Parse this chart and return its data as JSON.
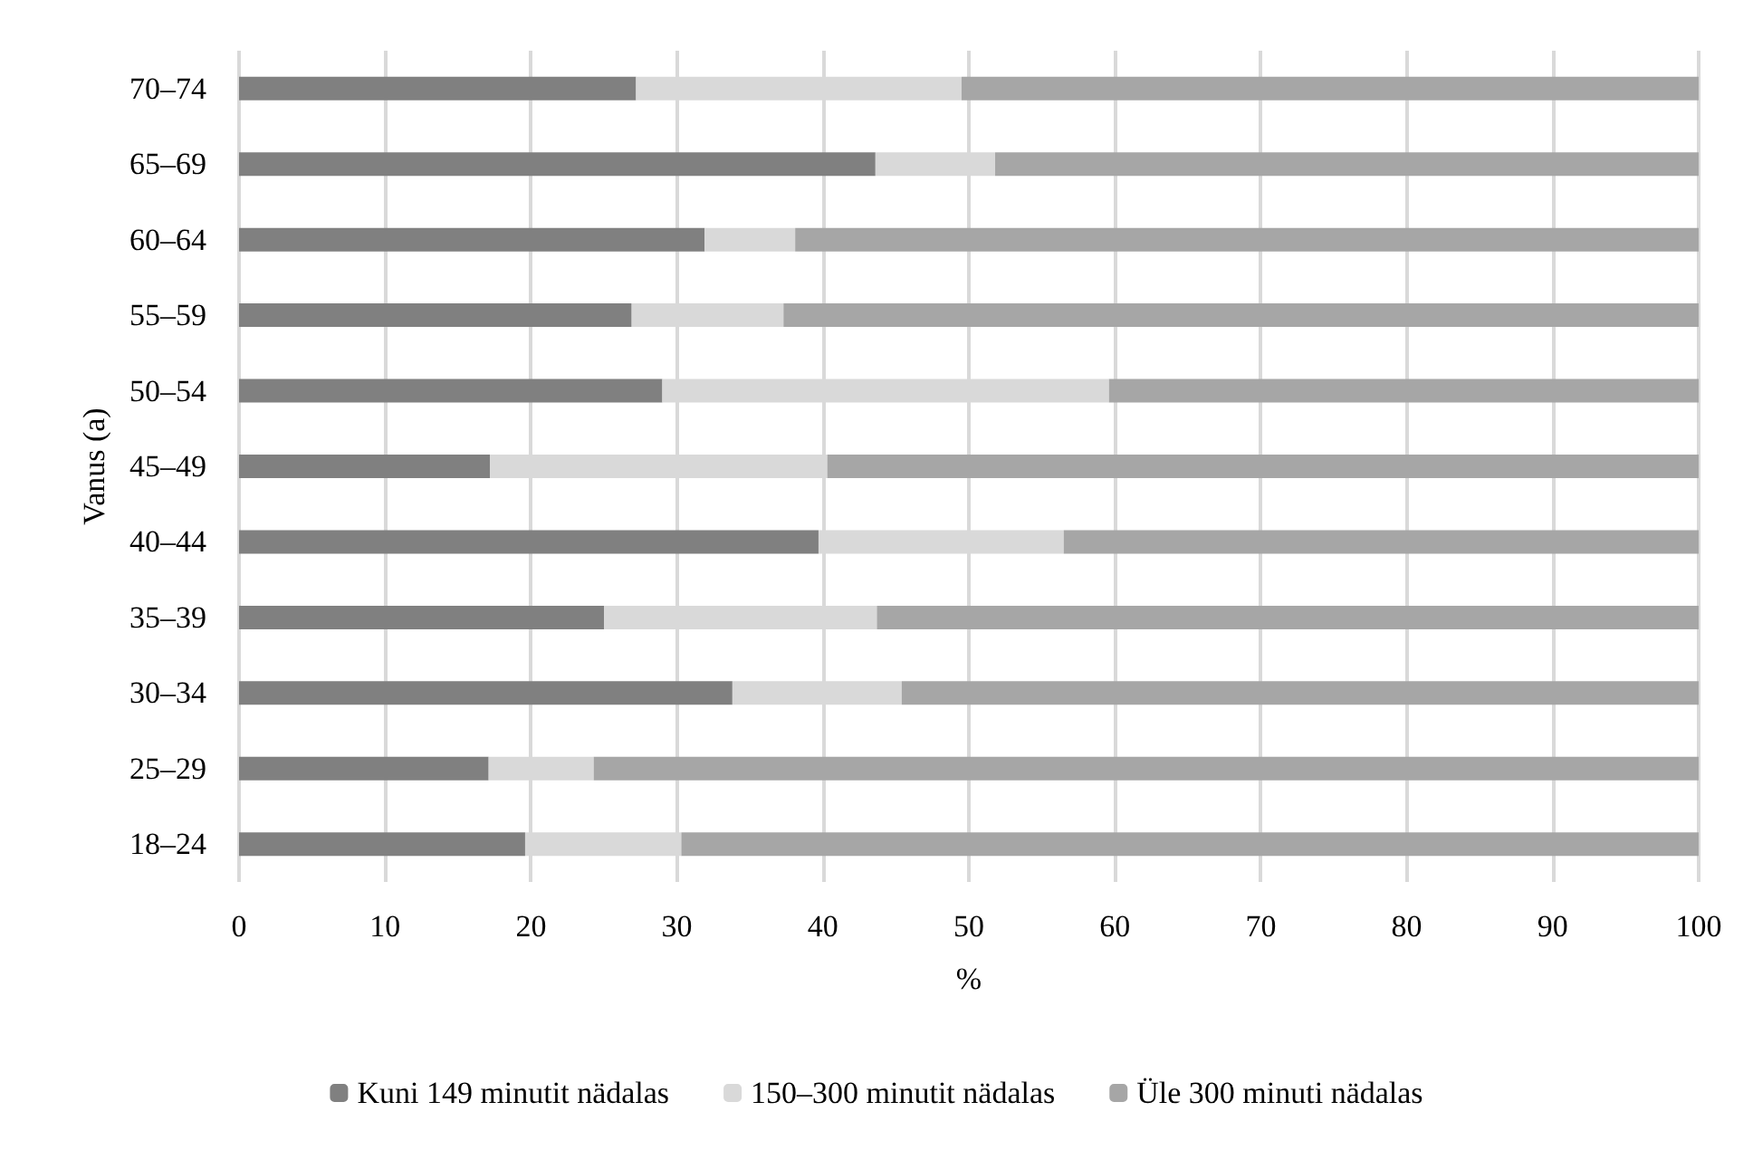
{
  "chart_data": {
    "type": "bar",
    "orientation": "horizontal",
    "stacked": true,
    "xlabel": "%",
    "ylabel": "Vanus (a)",
    "categories": [
      "70–74",
      "65–69",
      "60–64",
      "55–59",
      "50–54",
      "45–49",
      "40–44",
      "35–39",
      "30–34",
      "25–29",
      "18–24"
    ],
    "series": [
      {
        "name": "Kuni 149 minutit nädalas",
        "color": "#808080",
        "values": [
          27.2,
          43.6,
          31.9,
          26.9,
          29.0,
          17.2,
          39.7,
          25.0,
          33.8,
          17.1,
          19.6
        ]
      },
      {
        "name": "150–300 minutit nädalas",
        "color": "#d9d9d9",
        "values": [
          22.3,
          8.2,
          6.2,
          10.4,
          30.6,
          23.1,
          16.8,
          18.7,
          11.6,
          7.2,
          10.7
        ]
      },
      {
        "name": "Üle 300 minuti nädalas",
        "color": "#a6a6a6",
        "values": [
          50.5,
          48.2,
          61.9,
          62.7,
          40.4,
          59.7,
          43.5,
          56.3,
          54.6,
          75.7,
          69.7
        ]
      }
    ],
    "xlim": [
      0,
      100
    ],
    "xticks": [
      0,
      10,
      20,
      30,
      40,
      50,
      60,
      70,
      80,
      90,
      100
    ],
    "grid": "x",
    "legend": "bottom"
  }
}
